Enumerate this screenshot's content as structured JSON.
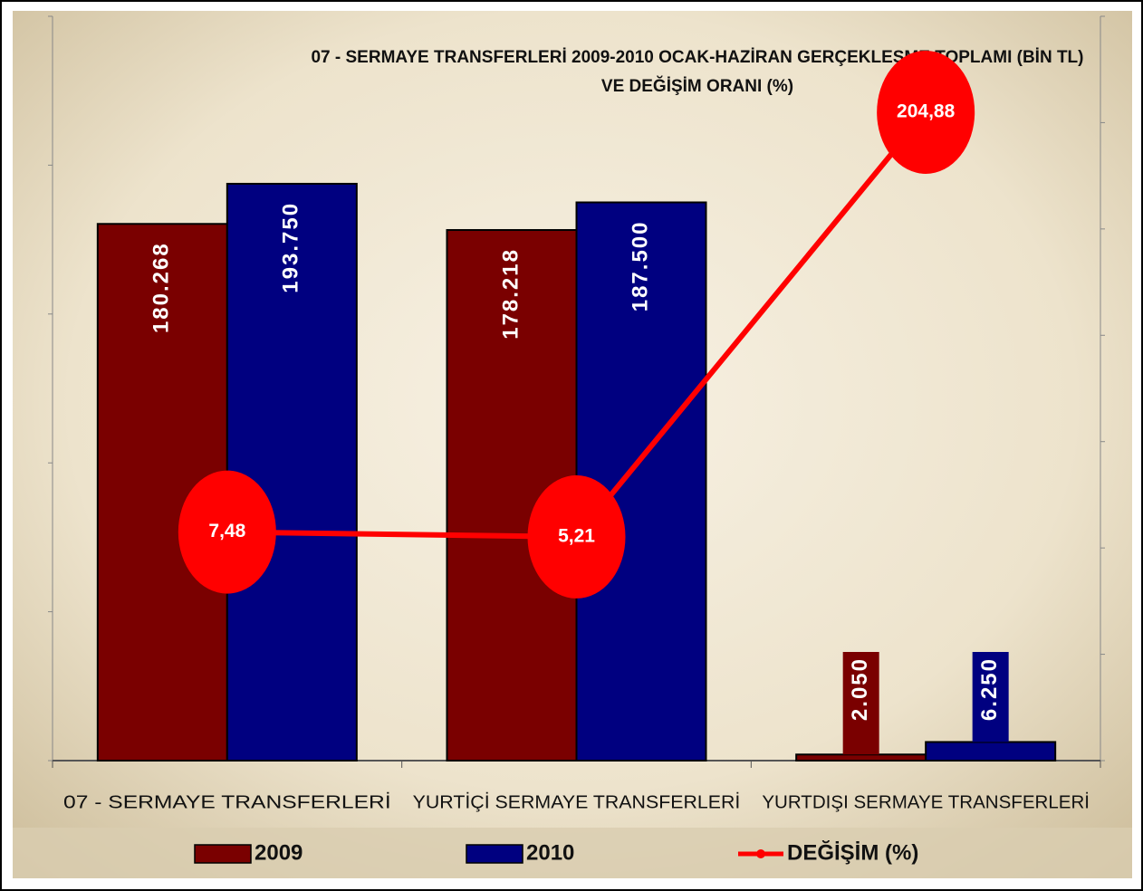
{
  "chart_data": {
    "type": "bar-line",
    "title": [
      "07 - SERMAYE TRANSFERLERİ 2009-2010 OCAK-HAZİRAN GERÇEKLEŞME TOPLAMI (BİN TL)",
      "VE DEĞİŞİM ORANI (%)"
    ],
    "categories": [
      "07 - SERMAYE TRANSFERLERİ",
      "YURTİÇİ SERMAYE TRANSFERLERİ",
      "YURTDIŞI SERMAYE TRANSFERLERİ"
    ],
    "series": [
      {
        "name": "2009",
        "type": "bar",
        "color": "#7a0000",
        "values": [
          180268,
          178218,
          2050
        ],
        "value_labels": [
          "180.268",
          "178.218",
          "2.050"
        ]
      },
      {
        "name": "2010",
        "type": "bar",
        "color": "#000080",
        "values": [
          193750,
          187500,
          6250
        ],
        "value_labels": [
          "193.750",
          "187.500",
          "6.250"
        ]
      },
      {
        "name": "DEĞİŞİM (%)",
        "type": "line",
        "axis": "y2",
        "color": "#ff0000",
        "values": [
          7.48,
          5.21,
          204.88
        ],
        "value_labels": [
          "7,48",
          "5,21",
          "204,88"
        ]
      }
    ],
    "ylim": [
      0,
      250000
    ],
    "yticks": [
      0,
      50000,
      100000,
      150000,
      200000,
      250000
    ],
    "y2lim": [
      -100,
      250
    ],
    "y2ticks": [
      -100,
      -50,
      0,
      50,
      100,
      150,
      200,
      250
    ],
    "legend": "bottom"
  }
}
